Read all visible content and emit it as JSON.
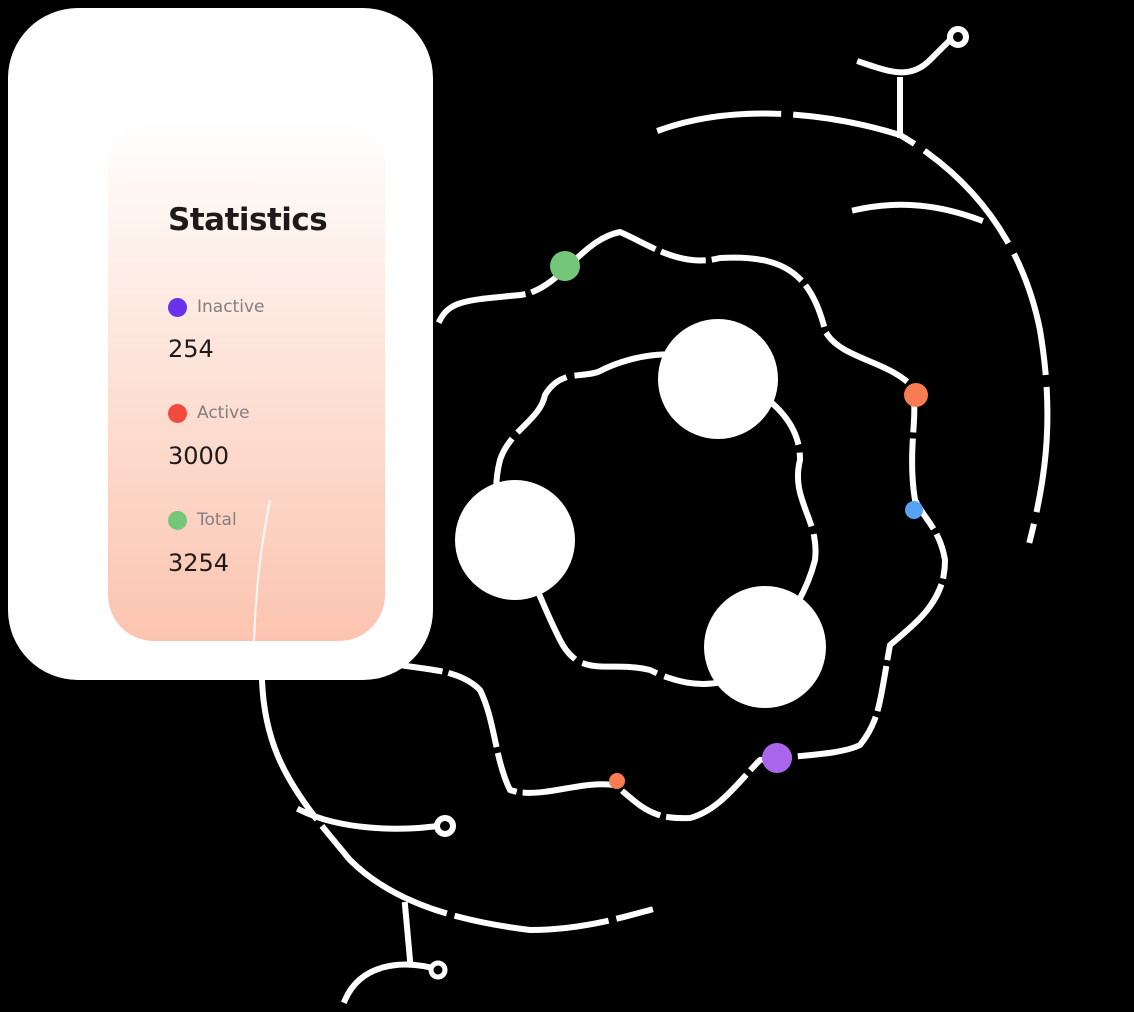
{
  "stats": {
    "title": "Statistics",
    "items": [
      {
        "label": "Inactive",
        "value": "254",
        "color": "#6a32ea"
      },
      {
        "label": "Active",
        "value": "3000",
        "color": "#f24a3c"
      },
      {
        "label": "Total",
        "value": "3254",
        "color": "#74c679"
      }
    ]
  },
  "colors": {
    "background": "#000000",
    "card": "#ffffff",
    "node_green": "#74c679",
    "node_orange": "#f87b51",
    "node_blue": "#56a3f5",
    "node_indigo": "#6b6ef0",
    "node_purple": "#a966ea"
  }
}
